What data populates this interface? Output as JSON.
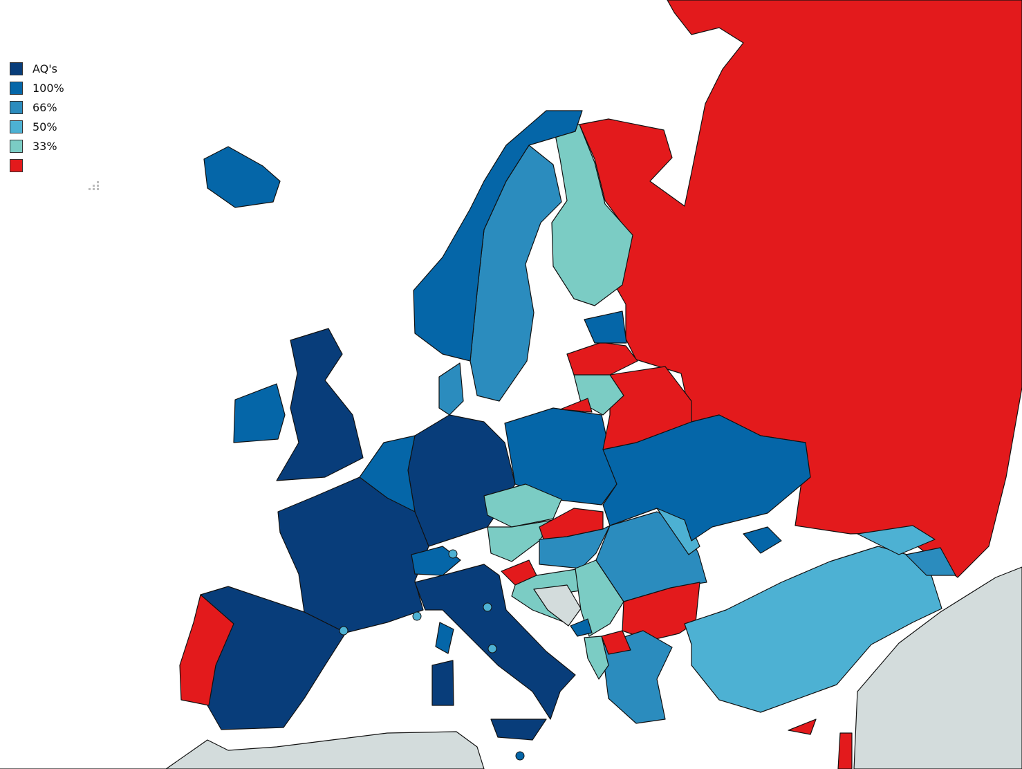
{
  "legend": {
    "items": [
      {
        "label": "AQ's",
        "color": "#083d7a"
      },
      {
        "label": "100%",
        "color": "#0566a8"
      },
      {
        "label": "66%",
        "color": "#2b8cbe"
      },
      {
        "label": "50%",
        "color": "#4db1d3"
      },
      {
        "label": "33%",
        "color": "#7bccc4"
      },
      {
        "label": "",
        "color": "#e31a1c"
      }
    ]
  },
  "colors": {
    "no_data": "#d3dcdc",
    "sea": "#ffffff"
  },
  "regions": [
    {
      "id": "russia",
      "category": 5
    },
    {
      "id": "finland",
      "category": 4
    },
    {
      "id": "sweden",
      "category": 2
    },
    {
      "id": "norway",
      "category": 1
    },
    {
      "id": "iceland",
      "category": 1
    },
    {
      "id": "ireland",
      "category": 1
    },
    {
      "id": "united-kingdom",
      "category": 0
    },
    {
      "id": "france",
      "category": 0
    },
    {
      "id": "spain",
      "category": 0
    },
    {
      "id": "portugal",
      "category": 5
    },
    {
      "id": "germany",
      "category": 0
    },
    {
      "id": "benelux",
      "category": 1
    },
    {
      "id": "denmark",
      "category": 2
    },
    {
      "id": "poland",
      "category": 1
    },
    {
      "id": "czechia",
      "category": 4
    },
    {
      "id": "austria",
      "category": 4
    },
    {
      "id": "switzerland",
      "category": 1
    },
    {
      "id": "italy",
      "category": 0
    },
    {
      "id": "sardinia",
      "category": 0
    },
    {
      "id": "sicily",
      "category": 0
    },
    {
      "id": "corsica",
      "category": 1
    },
    {
      "id": "slovenia",
      "category": 5
    },
    {
      "id": "slovakia",
      "category": 5
    },
    {
      "id": "hungary",
      "category": 2
    },
    {
      "id": "croatia",
      "category": 4
    },
    {
      "id": "bosnia",
      "category": -1
    },
    {
      "id": "serbia",
      "category": 4
    },
    {
      "id": "romania",
      "category": 2
    },
    {
      "id": "moldova",
      "category": 3
    },
    {
      "id": "bulgaria",
      "category": 5
    },
    {
      "id": "ukraine",
      "category": 1
    },
    {
      "id": "belarus",
      "category": 5
    },
    {
      "id": "lithuania",
      "category": 4
    },
    {
      "id": "latvia",
      "category": 5
    },
    {
      "id": "estonia",
      "category": 1
    },
    {
      "id": "kaliningrad",
      "category": 5
    },
    {
      "id": "greece",
      "category": 2
    },
    {
      "id": "north-macedonia",
      "category": 5
    },
    {
      "id": "albania",
      "category": 4
    },
    {
      "id": "montenegro",
      "category": 1
    },
    {
      "id": "turkey",
      "category": 3
    },
    {
      "id": "georgia",
      "category": 3
    },
    {
      "id": "caucasus-south",
      "category": 2
    },
    {
      "id": "crimea",
      "category": 1
    },
    {
      "id": "cyprus",
      "category": 5
    },
    {
      "id": "north-africa",
      "category": -1
    },
    {
      "id": "middle-east",
      "category": -1
    },
    {
      "id": "israel",
      "category": 5
    }
  ],
  "markers": [
    {
      "category": 3
    },
    {
      "category": 3
    },
    {
      "category": 3
    },
    {
      "category": 3
    },
    {
      "category": 3
    },
    {
      "category": 1
    }
  ]
}
